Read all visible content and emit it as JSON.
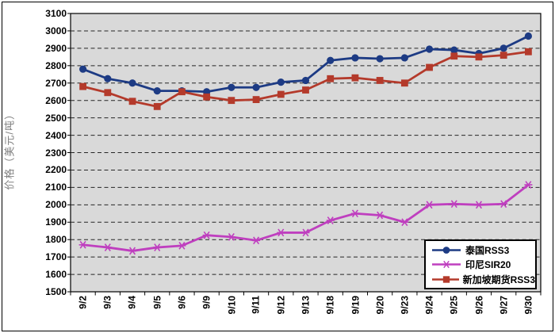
{
  "frame": {
    "background": "#FFFFFF",
    "border_color": "#000000"
  },
  "chart_data": {
    "type": "line",
    "title": "",
    "xlabel": "",
    "ylabel": "价格（美元/吨）",
    "ylim": [
      1500,
      3100
    ],
    "ytick_step": 100,
    "grid": "horizontal dashed black lines on gray plot background",
    "plot_background": "#D9D9D9",
    "gridline_color": "#262626",
    "legend_position": "bottom-right inside plot area",
    "categories": [
      "9/2",
      "9/3",
      "9/4",
      "9/5",
      "9/6",
      "9/9",
      "9/10",
      "9/11",
      "9/12",
      "9/13",
      "9/18",
      "9/19",
      "9/20",
      "9/23",
      "9/24",
      "9/25",
      "9/26",
      "9/27",
      "9/30"
    ],
    "series": [
      {
        "name": "泰国RSS3",
        "color": "#1D3B84",
        "marker": "circle",
        "values": [
          2780,
          2725,
          2700,
          2655,
          2655,
          2650,
          2675,
          2675,
          2705,
          2715,
          2830,
          2845,
          2840,
          2845,
          2895,
          2890,
          2870,
          2900,
          2970
        ]
      },
      {
        "name": "印尼SIR20",
        "color": "#BF3FBF",
        "marker": "star",
        "values": [
          1770,
          1755,
          1735,
          1755,
          1765,
          1825,
          1815,
          1795,
          1840,
          1840,
          1910,
          1950,
          1940,
          1900,
          2000,
          2005,
          2000,
          2005,
          2115
        ]
      },
      {
        "name": "新加坡期货RSS3",
        "color": "#B43A2B",
        "marker": "square",
        "values": [
          2680,
          2645,
          2595,
          2565,
          2650,
          2620,
          2600,
          2605,
          2635,
          2660,
          2725,
          2730,
          2715,
          2700,
          2790,
          2855,
          2850,
          2860,
          2880
        ]
      }
    ]
  }
}
